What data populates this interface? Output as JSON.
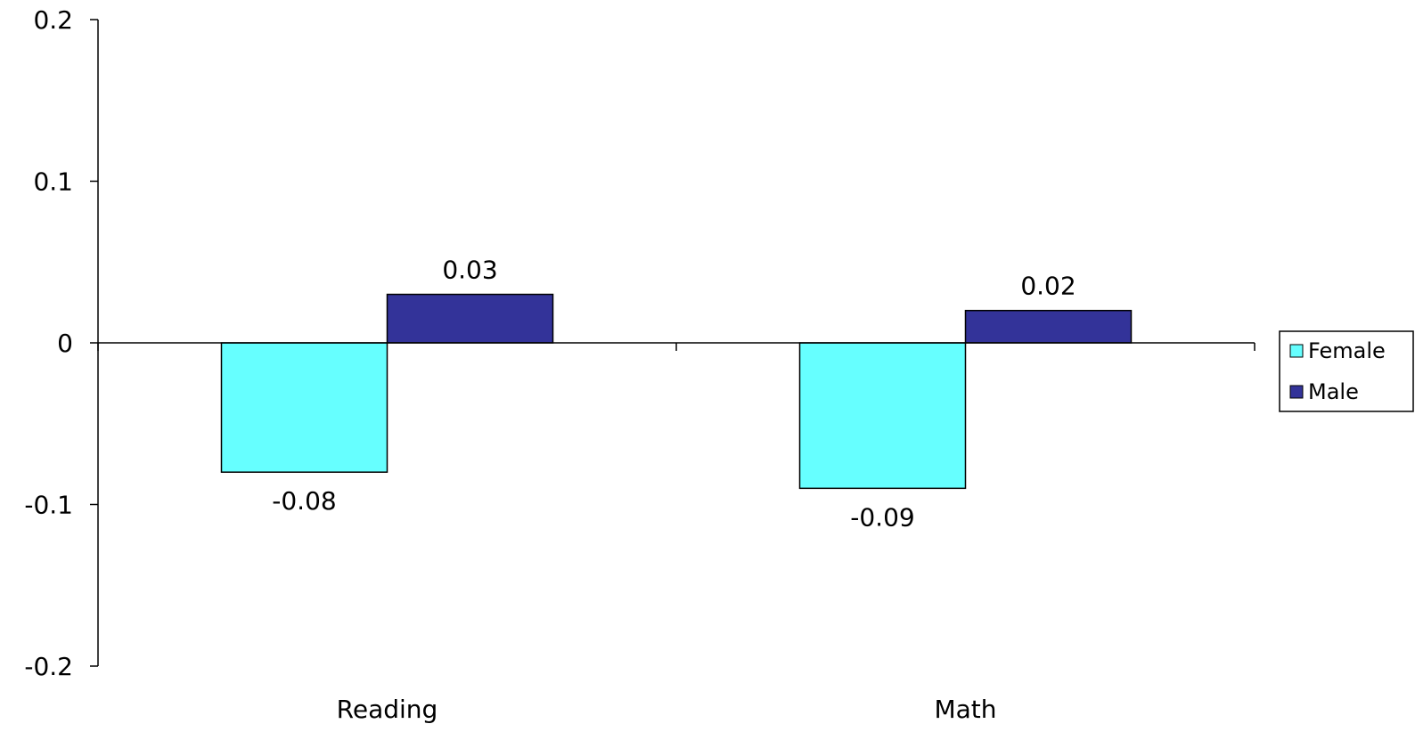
{
  "chart_data": {
    "type": "bar",
    "title": "",
    "xlabel": "",
    "ylabel": "",
    "categories": [
      "Reading",
      "Math"
    ],
    "series": [
      {
        "name": "Female",
        "values": [
          -0.08,
          -0.09
        ],
        "color": "#66ffff"
      },
      {
        "name": "Male",
        "values": [
          0.03,
          0.02
        ],
        "color": "#333399"
      }
    ],
    "data_labels": [
      [
        "-0.08",
        "-0.09"
      ],
      [
        "0.03",
        "0.02"
      ]
    ],
    "ylim": [
      -0.2,
      0.2
    ],
    "yticks": [
      0.2,
      0.1,
      0,
      -0.1,
      -0.2
    ],
    "ytick_labels": [
      "0.2",
      "0.1",
      "0",
      "-0.1",
      "-0.2"
    ],
    "grid": false,
    "legend_position": "right"
  }
}
